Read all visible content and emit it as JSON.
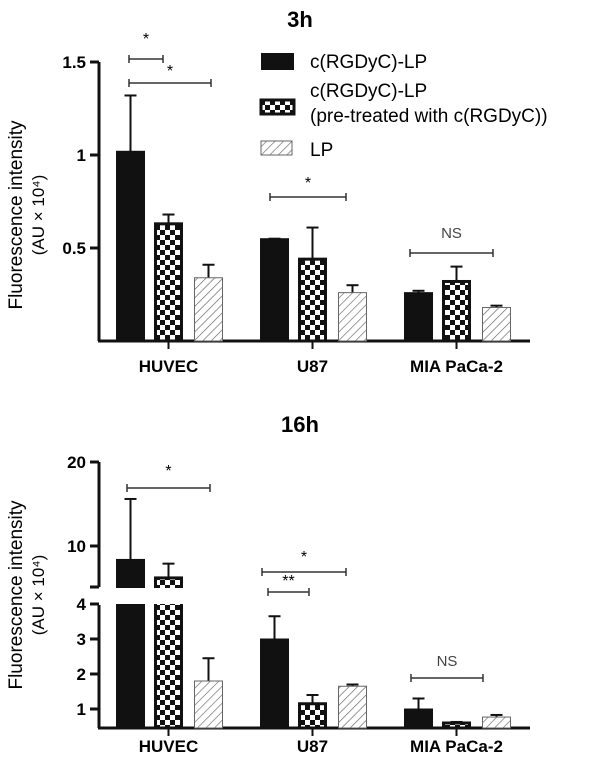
{
  "colors": {
    "solid": "#111111",
    "axis": "#111111",
    "hatch": "#555555",
    "bracket": "#333333"
  },
  "legend": {
    "items": [
      {
        "pattern": "solid",
        "label": "c(RGDyC)-LP"
      },
      {
        "pattern": "checker",
        "label": "c(RGDyC)-LP",
        "label2": "(pre-treated with c(RGDyC))"
      },
      {
        "pattern": "hatch",
        "label": "LP"
      }
    ]
  },
  "chart_data": [
    {
      "type": "bar",
      "title": "3h",
      "xlabel": "",
      "ylabel": "Fluorescence intensity",
      "ylabel2": "(AU × 10⁴)",
      "ylim": [
        0,
        1.5
      ],
      "yticks": [
        "0.5",
        "1",
        "1.5"
      ],
      "categories": [
        "HUVEC",
        "U87",
        "MIA PaCa-2"
      ],
      "series": [
        {
          "name": "c(RGDyC)-LP",
          "values": [
            1.02,
            0.55,
            0.26
          ],
          "errors": [
            0.3,
            0.0,
            0.01
          ]
        },
        {
          "name": "c(RGDyC)-LP (pre-treated with c(RGDyC))",
          "values": [
            0.63,
            0.44,
            0.32
          ],
          "errors": [
            0.05,
            0.17,
            0.08
          ]
        },
        {
          "name": "LP",
          "values": [
            0.34,
            0.26,
            0.18
          ],
          "errors": [
            0.07,
            0.04,
            0.01
          ]
        }
      ],
      "annotations": [
        {
          "category": "HUVEC",
          "from": 0,
          "to": 1,
          "label": "*"
        },
        {
          "category": "HUVEC",
          "from": 0,
          "to": 2,
          "label": "*"
        },
        {
          "category": "U87",
          "from": 0,
          "to": 2,
          "label": "*"
        },
        {
          "category": "MIA PaCa-2",
          "from": 0,
          "to": 2,
          "label": "NS"
        }
      ],
      "legend_position": "upper right"
    },
    {
      "type": "bar",
      "title": "16h",
      "xlabel": "",
      "ylabel": "Fluorescence intensity",
      "ylabel2": "(AU × 10⁴)",
      "ylim": [
        0.5,
        20
      ],
      "axis_break": [
        4,
        5
      ],
      "yticks": [
        "1",
        "2",
        "3",
        "4",
        "10",
        "20"
      ],
      "categories": [
        "HUVEC",
        "U87",
        "MIA PaCa-2"
      ],
      "series": [
        {
          "name": "c(RGDyC)-LP",
          "values": [
            8.4,
            3.0,
            1.0
          ],
          "errors": [
            7.2,
            0.65,
            0.3
          ]
        },
        {
          "name": "c(RGDyC)-LP (pre-treated with c(RGDyC))",
          "values": [
            6.2,
            1.15,
            0.6
          ],
          "errors": [
            1.7,
            0.25,
            0.03
          ]
        },
        {
          "name": "LP",
          "values": [
            1.8,
            1.65,
            0.77
          ],
          "errors": [
            0.65,
            0.05,
            0.06
          ]
        }
      ],
      "annotations": [
        {
          "category": "HUVEC",
          "from": 0,
          "to": 2,
          "label": "*"
        },
        {
          "category": "U87",
          "from": 0,
          "to": 2,
          "label": "*"
        },
        {
          "category": "U87",
          "from": 0,
          "to": 1,
          "label": "**"
        },
        {
          "category": "MIA PaCa-2",
          "from": 0,
          "to": 2,
          "label": "NS"
        }
      ]
    }
  ]
}
